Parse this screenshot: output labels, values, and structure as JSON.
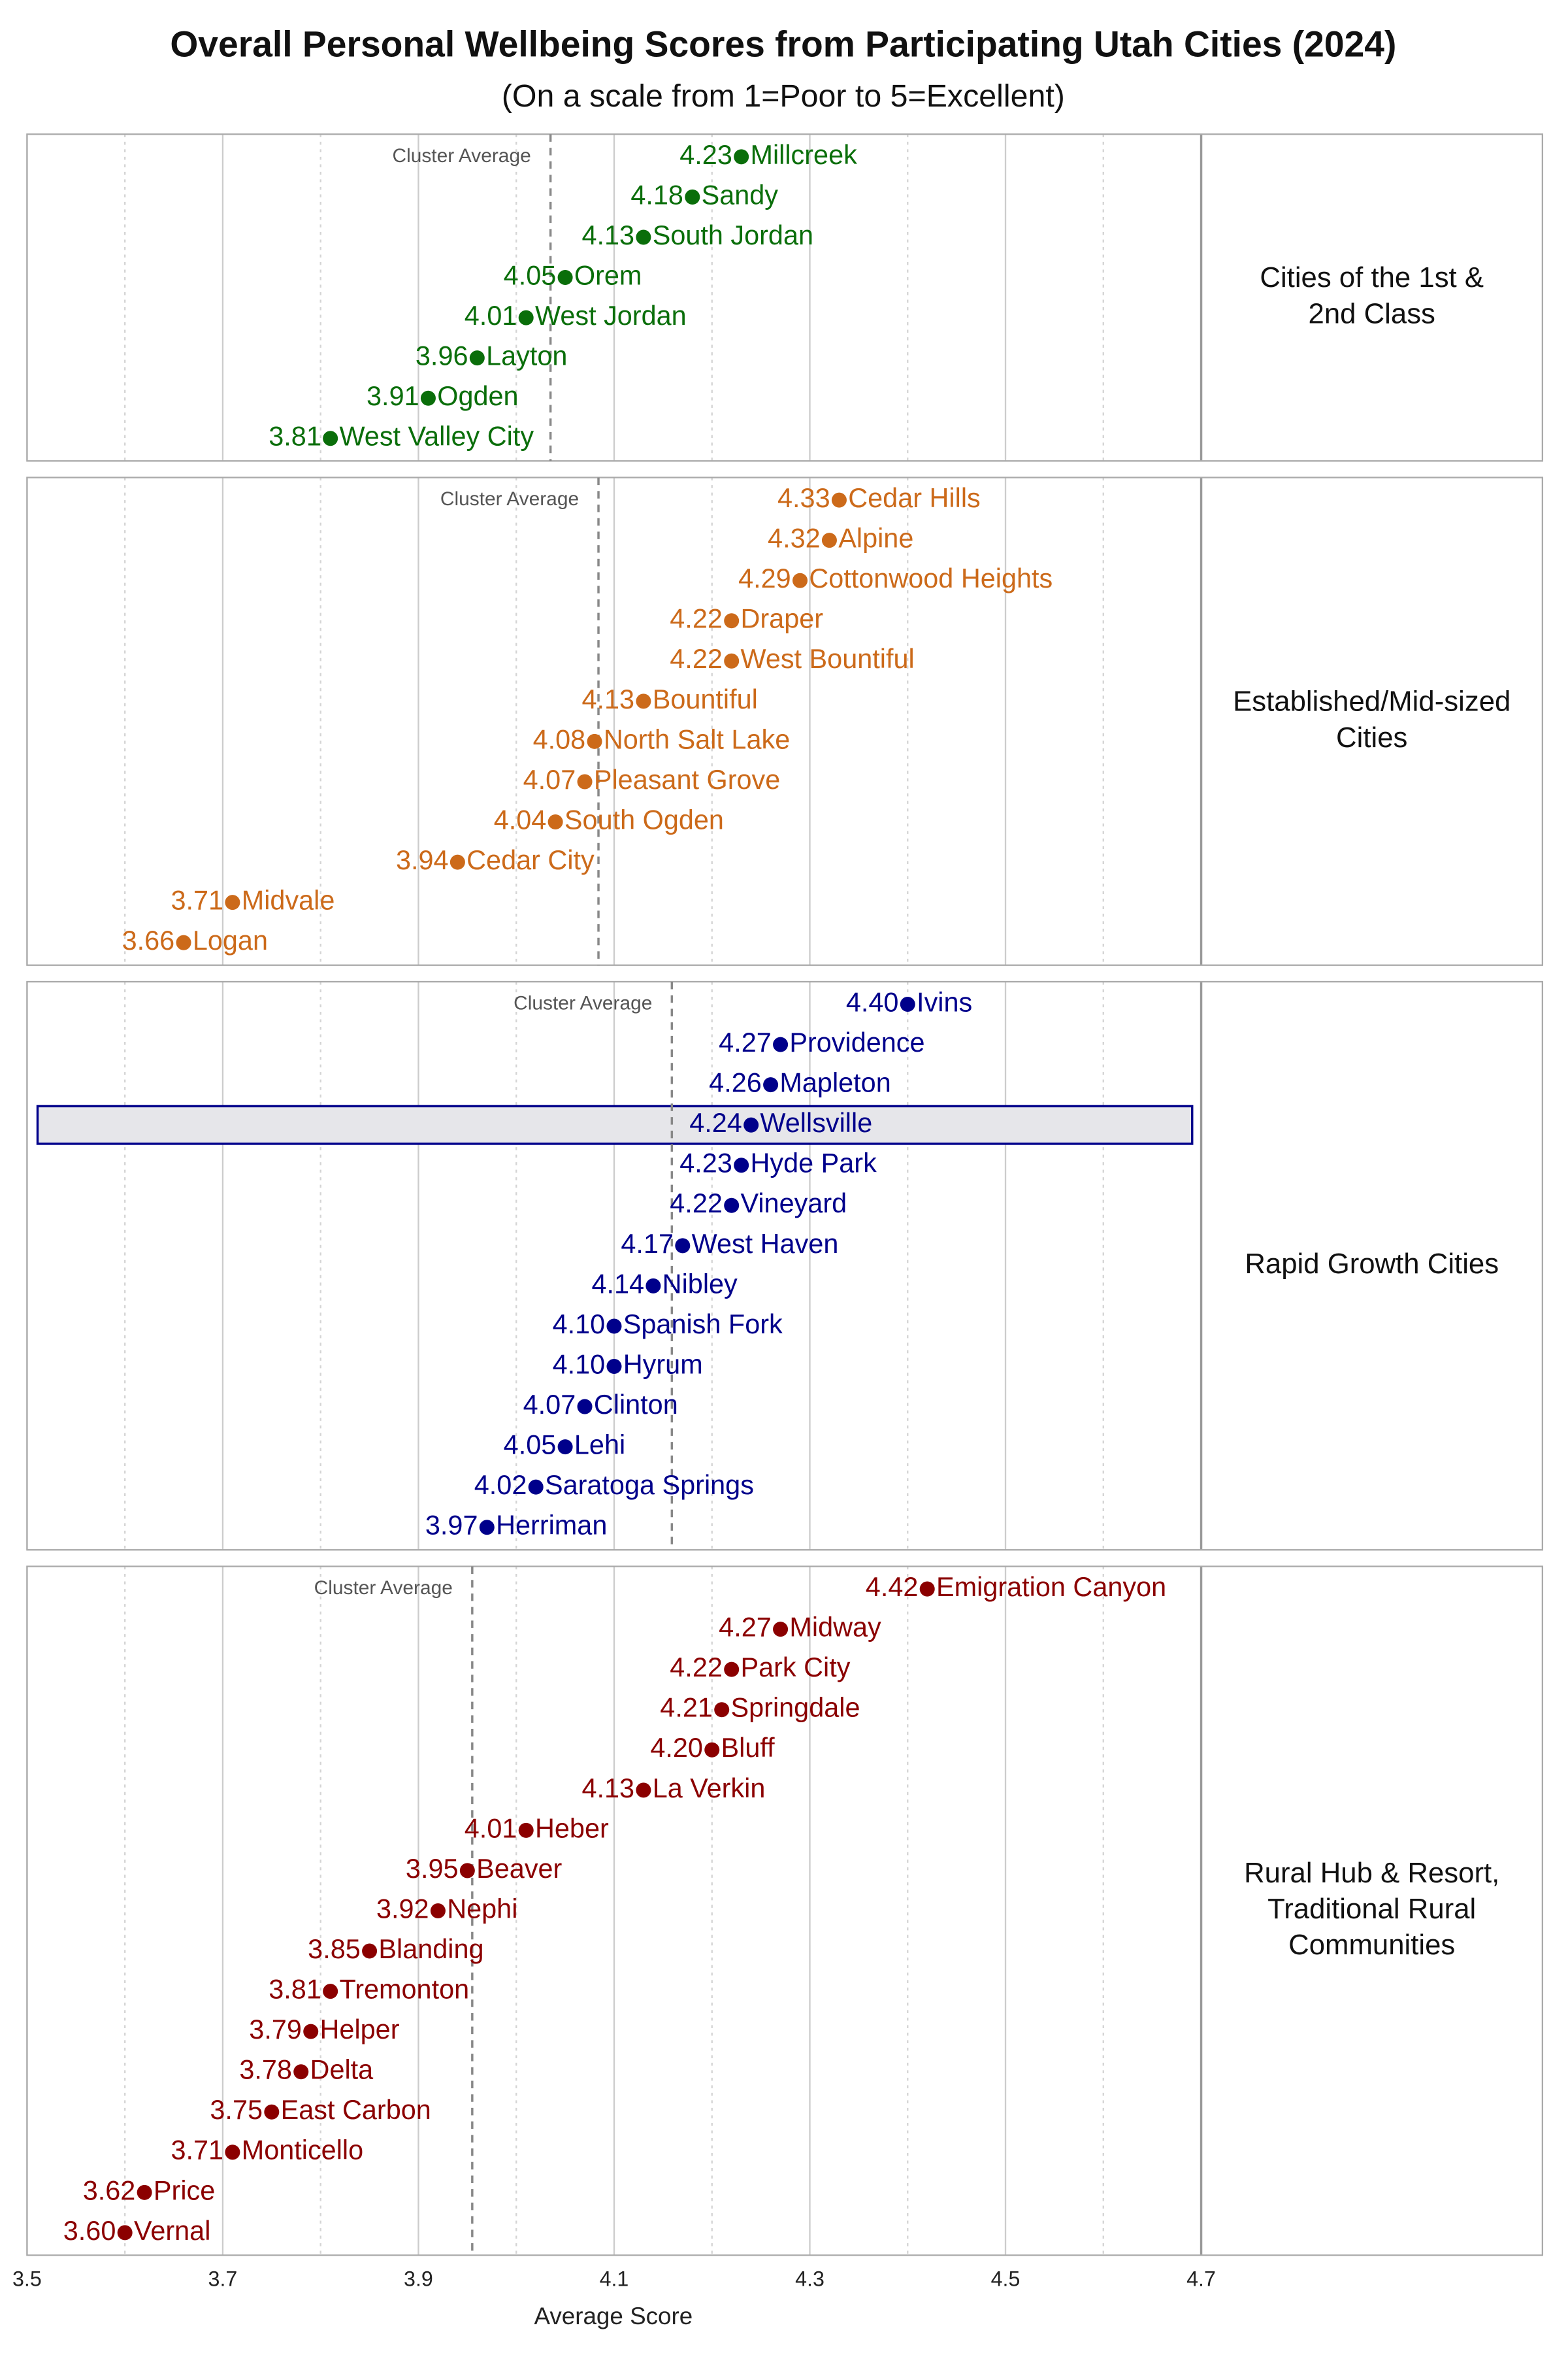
{
  "chart_data": {
    "type": "dot",
    "title": "Overall Personal Wellbeing Scores from Participating Utah Cities (2024)",
    "subtitle": "(On a scale from 1=Poor to 5=Excellent)",
    "x_label": "Average Score",
    "xlim": [
      3.5,
      4.7
    ],
    "xticks": [
      3.5,
      3.7,
      3.9,
      4.1,
      4.3,
      4.5,
      4.7
    ],
    "minor_xticks": [
      3.6,
      3.8,
      4.0,
      4.2,
      4.4,
      4.6
    ],
    "grid": true,
    "average_label": "Cluster Average",
    "highlight": "Wellsville",
    "panels": [
      {
        "name": [
          "Cities of the 1st &",
          "2nd Class"
        ],
        "color": "#0a6e0a",
        "average": 4.035,
        "categories": [
          "Millcreek",
          "Sandy",
          "South Jordan",
          "Orem",
          "West Jordan",
          "Layton",
          "Ogden",
          "West Valley City"
        ],
        "values": [
          4.23,
          4.18,
          4.13,
          4.05,
          4.01,
          3.96,
          3.91,
          3.81
        ],
        "value_labels": [
          "4.23",
          "4.18",
          "4.13",
          "4.05",
          "4.01",
          "3.96",
          "3.91",
          "3.81"
        ]
      },
      {
        "name": [
          "Established/Mid-sized",
          "Cities"
        ],
        "color": "#cc6a1a",
        "average": 4.084,
        "categories": [
          "Cedar Hills",
          "Alpine",
          "Cottonwood Heights",
          "Draper",
          "West Bountiful",
          "Bountiful",
          "North Salt Lake",
          "Pleasant Grove",
          "South Ogden",
          "Cedar City",
          "Midvale",
          "Logan"
        ],
        "values": [
          4.33,
          4.32,
          4.29,
          4.22,
          4.22,
          4.13,
          4.08,
          4.07,
          4.04,
          3.94,
          3.71,
          3.66
        ],
        "value_labels": [
          "4.33",
          "4.32",
          "4.29",
          "4.22",
          "4.22",
          "4.13",
          "4.08",
          "4.07",
          "4.04",
          "3.94",
          "3.71",
          "3.66"
        ]
      },
      {
        "name": [
          "Rapid Growth Cities"
        ],
        "color": "#00008b",
        "average": 4.159,
        "categories": [
          "Ivins",
          "Providence",
          "Mapleton",
          "Wellsville",
          "Hyde Park",
          "Vineyard",
          "West Haven",
          "Nibley",
          "Spanish Fork",
          "Hyrum",
          "Clinton",
          "Lehi",
          "Saratoga Springs",
          "Herriman"
        ],
        "values": [
          4.4,
          4.27,
          4.26,
          4.24,
          4.23,
          4.22,
          4.17,
          4.14,
          4.1,
          4.1,
          4.07,
          4.05,
          4.02,
          3.97
        ],
        "value_labels": [
          "4.40",
          "4.27",
          "4.26",
          "4.24",
          "4.23",
          "4.22",
          "4.17",
          "4.14",
          "4.10",
          "4.10",
          "4.07",
          "4.05",
          "4.02",
          "3.97"
        ]
      },
      {
        "name": [
          "Rural Hub & Resort,",
          "Traditional Rural",
          "Communities"
        ],
        "color": "#8b0000",
        "average": 3.955,
        "categories": [
          "Emigration Canyon",
          "Midway",
          "Park City",
          "Springdale",
          "Bluff",
          "La Verkin",
          "Heber",
          "Beaver",
          "Nephi",
          "Blanding",
          "Tremonton",
          "Helper",
          "Delta",
          "East Carbon",
          "Monticello",
          "Price",
          "Vernal"
        ],
        "values": [
          4.42,
          4.27,
          4.22,
          4.21,
          4.2,
          4.13,
          4.01,
          3.95,
          3.92,
          3.85,
          3.81,
          3.79,
          3.78,
          3.75,
          3.71,
          3.62,
          3.6
        ],
        "value_labels": [
          "4.42",
          "4.27",
          "4.22",
          "4.21",
          "4.20",
          "4.13",
          "4.01",
          "3.95",
          "3.92",
          "3.85",
          "3.81",
          "3.79",
          "3.78",
          "3.75",
          "3.71",
          "3.62",
          "3.60"
        ]
      }
    ]
  }
}
